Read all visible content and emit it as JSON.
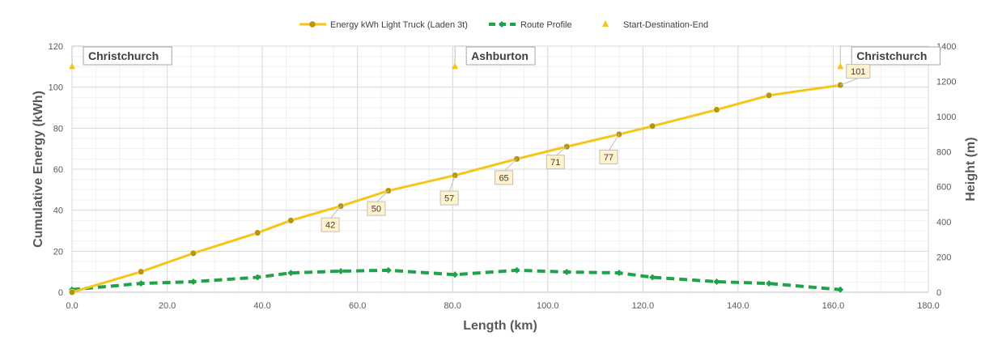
{
  "chart_data": {
    "type": "line",
    "title": "",
    "xlabel": "Length (km)",
    "ylabel_left": "Cumulative Energy (kWh)",
    "ylabel_right": "Height (m)",
    "xlim": [
      0,
      180
    ],
    "ylim_left": [
      0,
      120
    ],
    "ylim_right": [
      0,
      1400
    ],
    "x_ticks": [
      0,
      20,
      40,
      60,
      80,
      100,
      120,
      140,
      160,
      180
    ],
    "x_tick_labels": [
      "0.0",
      "20.0",
      "40.0",
      "60.0",
      "80.0",
      "100.0",
      "120.0",
      "140.0",
      "160.0",
      "180.0"
    ],
    "y_left_ticks": [
      0,
      20,
      40,
      60,
      80,
      100,
      120
    ],
    "y_right_ticks": [
      0,
      200,
      400,
      600,
      800,
      1000,
      1200,
      1400
    ],
    "grid": true,
    "legend_position": "top",
    "series": [
      {
        "name": "Energy kWh Light Truck (Laden 3t)",
        "axis": "left",
        "color": "#F5C518",
        "marker_color": "#B8960C",
        "style": "solid",
        "x": [
          0,
          14.5,
          25.5,
          39,
          46,
          56.5,
          66.5,
          80.5,
          93.5,
          104,
          115,
          122,
          135.5,
          146.5,
          161.5
        ],
        "y": [
          0,
          10,
          19,
          29,
          35,
          42,
          49.5,
          57,
          65,
          71,
          77,
          81,
          89,
          96,
          101
        ]
      },
      {
        "name": "Route Profile",
        "axis": "right",
        "color": "#1FA34A",
        "style": "dashed",
        "x": [
          0,
          14.5,
          25.5,
          39,
          46,
          56.5,
          66.5,
          80.5,
          93.5,
          104,
          115,
          122,
          135.5,
          146.5,
          161.5
        ],
        "y": [
          15,
          50,
          60,
          85,
          110,
          120,
          125,
          100,
          125,
          115,
          110,
          85,
          60,
          50,
          15
        ]
      },
      {
        "name": "Start-Destination-End",
        "axis": "left",
        "color": "#F5C518",
        "style": "marker-triangle",
        "x": [
          0,
          80.5,
          161.5
        ],
        "y": [
          110,
          110,
          110
        ]
      }
    ],
    "data_labels": [
      {
        "x": 56.5,
        "y": 42,
        "text": "42"
      },
      {
        "x": 66.5,
        "y": 49.5,
        "text": "50"
      },
      {
        "x": 80.5,
        "y": 57,
        "text": "57"
      },
      {
        "x": 93.5,
        "y": 65,
        "text": "65"
      },
      {
        "x": 104,
        "y": 71,
        "text": "71"
      },
      {
        "x": 115,
        "y": 77,
        "text": "77"
      },
      {
        "x": 161.5,
        "y": 101,
        "text": "101"
      }
    ],
    "annotations": [
      {
        "x": 0,
        "text": "Christchurch"
      },
      {
        "x": 80.5,
        "text": "Ashburton"
      },
      {
        "x": 161.5,
        "text": "Christchurch"
      }
    ]
  }
}
